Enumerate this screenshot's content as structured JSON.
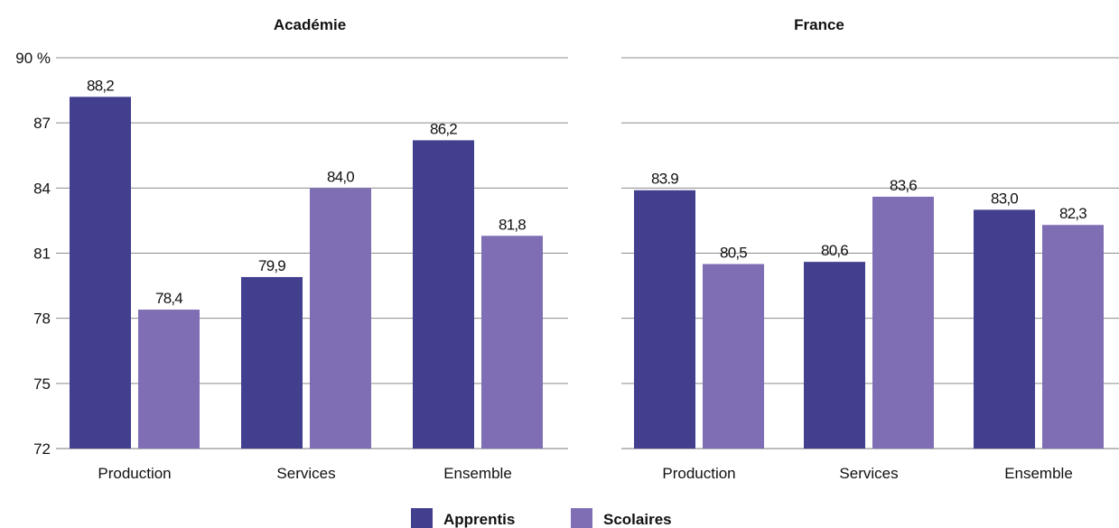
{
  "legend": {
    "items": [
      {
        "label": "Apprentis",
        "color": "#433f8f"
      },
      {
        "label": "Scolaires",
        "color": "#7f6eb4"
      }
    ]
  },
  "chart_data": [
    {
      "type": "bar",
      "title": "Académie",
      "categories": [
        "Production",
        "Services",
        "Ensemble"
      ],
      "series": [
        {
          "name": "Apprentis",
          "values": [
            88.2,
            79.9,
            86.2
          ],
          "labels": [
            "88,2",
            "79,9",
            "86,2"
          ]
        },
        {
          "name": "Scolaires",
          "values": [
            78.4,
            84.0,
            81.8
          ],
          "labels": [
            "78,4",
            "84,0",
            "81,8"
          ]
        }
      ],
      "ylim": [
        72,
        90
      ],
      "yticks": [
        72,
        75,
        78,
        81,
        84,
        87,
        90
      ],
      "ytick_labels": [
        "72",
        "75",
        "78",
        "81",
        "84",
        "87",
        "90 %"
      ],
      "grid": true,
      "legend": "bottom"
    },
    {
      "type": "bar",
      "title": "France",
      "categories": [
        "Production",
        "Services",
        "Ensemble"
      ],
      "series": [
        {
          "name": "Apprentis",
          "values": [
            83.9,
            80.6,
            83.0
          ],
          "labels": [
            "83.9",
            "80,6",
            "83,0"
          ]
        },
        {
          "name": "Scolaires",
          "values": [
            80.5,
            83.6,
            82.3
          ],
          "labels": [
            "80,5",
            "83,6",
            "82,3"
          ]
        }
      ],
      "ylim": [
        72,
        90
      ],
      "yticks": [
        72,
        75,
        78,
        81,
        84,
        87,
        90
      ],
      "ytick_labels": [
        "",
        "",
        "",
        "",
        "",
        "",
        ""
      ],
      "grid": true,
      "legend": "bottom"
    }
  ]
}
